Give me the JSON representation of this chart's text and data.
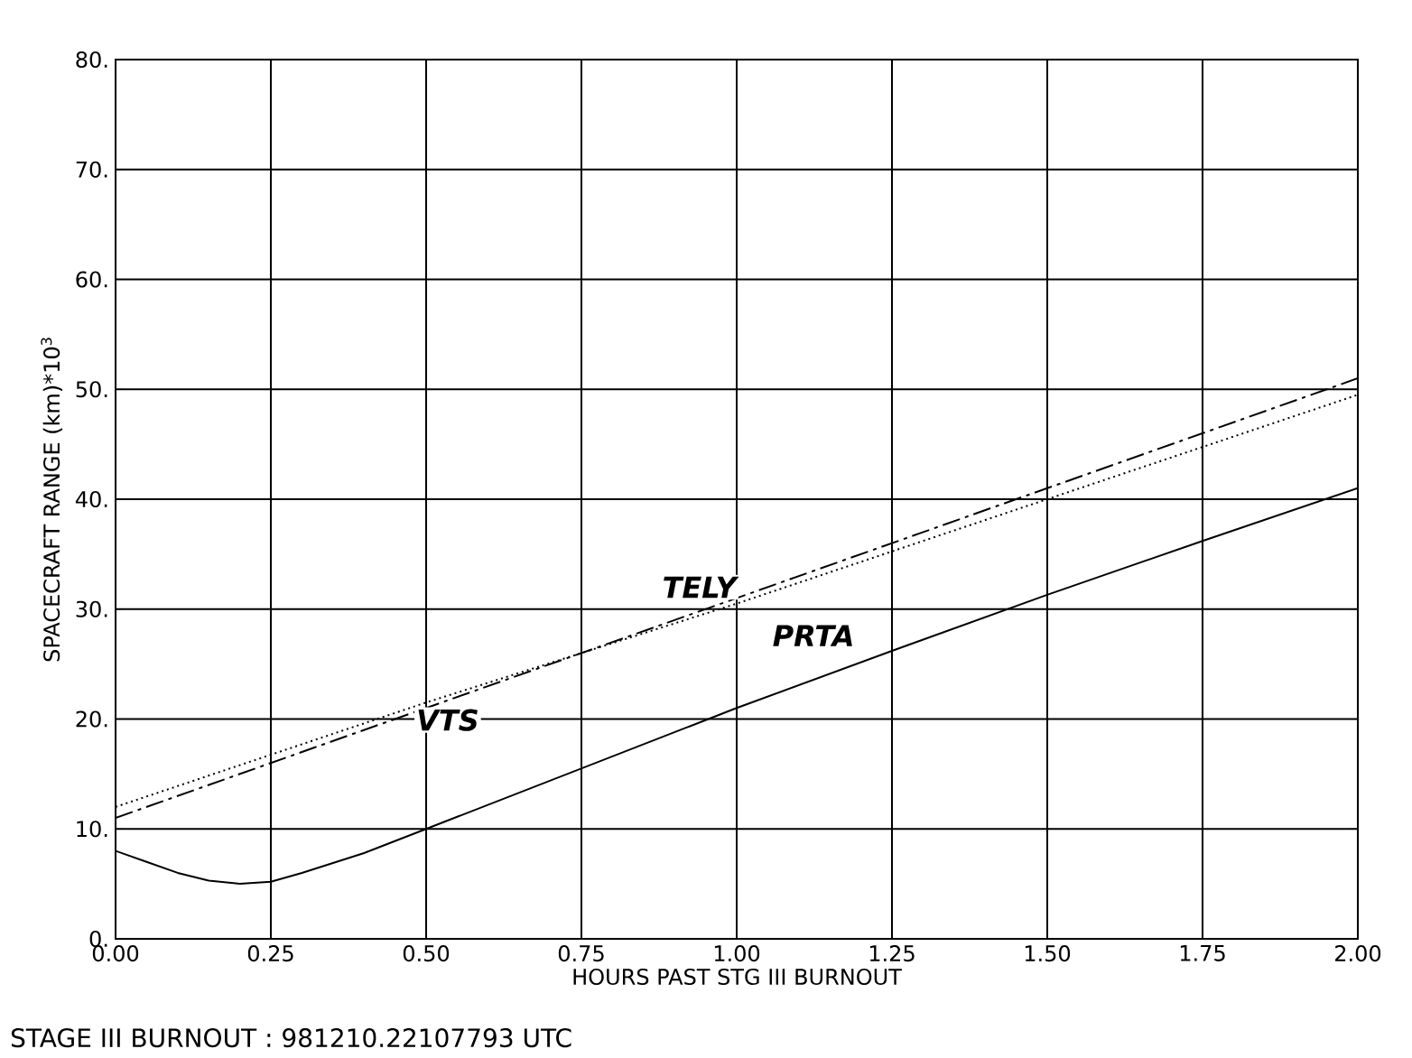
{
  "chart_data": {
    "type": "line",
    "xlabel": "HOURS PAST STG III BURNOUT",
    "ylabel": "SPACECRAFT RANGE (km)*10$^{3}$",
    "xlim": [
      0,
      2
    ],
    "ylim": [
      0,
      80
    ],
    "grid": true,
    "marker": "none",
    "xticks": [
      {
        "value": 0,
        "label": "0.00"
      },
      {
        "value": 0.25,
        "label": "0.25"
      },
      {
        "value": 0.5,
        "label": "0.50"
      },
      {
        "value": 0.75,
        "label": "0.75"
      },
      {
        "value": 1,
        "label": "1.00"
      },
      {
        "value": 1.25,
        "label": "1.25"
      },
      {
        "value": 1.5,
        "label": "1.50"
      },
      {
        "value": 1.75,
        "label": "1.75"
      },
      {
        "value": 2,
        "label": "2.00"
      }
    ],
    "yticks": [
      {
        "value": 0,
        "label": "0."
      },
      {
        "value": 10,
        "label": "10."
      },
      {
        "value": 20,
        "label": "20."
      },
      {
        "value": 30,
        "label": "30."
      },
      {
        "value": 40,
        "label": "40."
      },
      {
        "value": 50,
        "label": "50."
      },
      {
        "value": 60,
        "label": "60."
      },
      {
        "value": 70,
        "label": "70."
      },
      {
        "value": 80,
        "label": "80."
      }
    ],
    "series": [
      {
        "name": "PRTA",
        "color": "#000000",
        "line_style": "solid",
        "x": [
          0,
          0.05,
          0.1,
          0.15,
          0.2,
          0.25,
          0.3,
          0.4,
          0.5,
          0.75,
          1,
          1.25,
          1.5,
          1.75,
          2
        ],
        "values": [
          8,
          7,
          6,
          5.3,
          5,
          5.2,
          6,
          7.8,
          10,
          15.5,
          21,
          26.2,
          31.3,
          36.2,
          41
        ]
      },
      {
        "name": "TELY",
        "color": "#000000",
        "line_style": "dashed",
        "x": [
          0,
          0.5,
          1,
          1.5,
          2
        ],
        "values": [
          11,
          21,
          31,
          41,
          51
        ]
      },
      {
        "name": "VTS",
        "color": "#000000",
        "line_style": "dotted",
        "x": [
          0,
          0.5,
          1,
          1.5,
          2
        ],
        "values": [
          12,
          21.5,
          30.5,
          40,
          49.5
        ]
      }
    ],
    "annotations": [
      "STAGE III BURNOUT : 981210.22107793 UTC"
    ]
  }
}
